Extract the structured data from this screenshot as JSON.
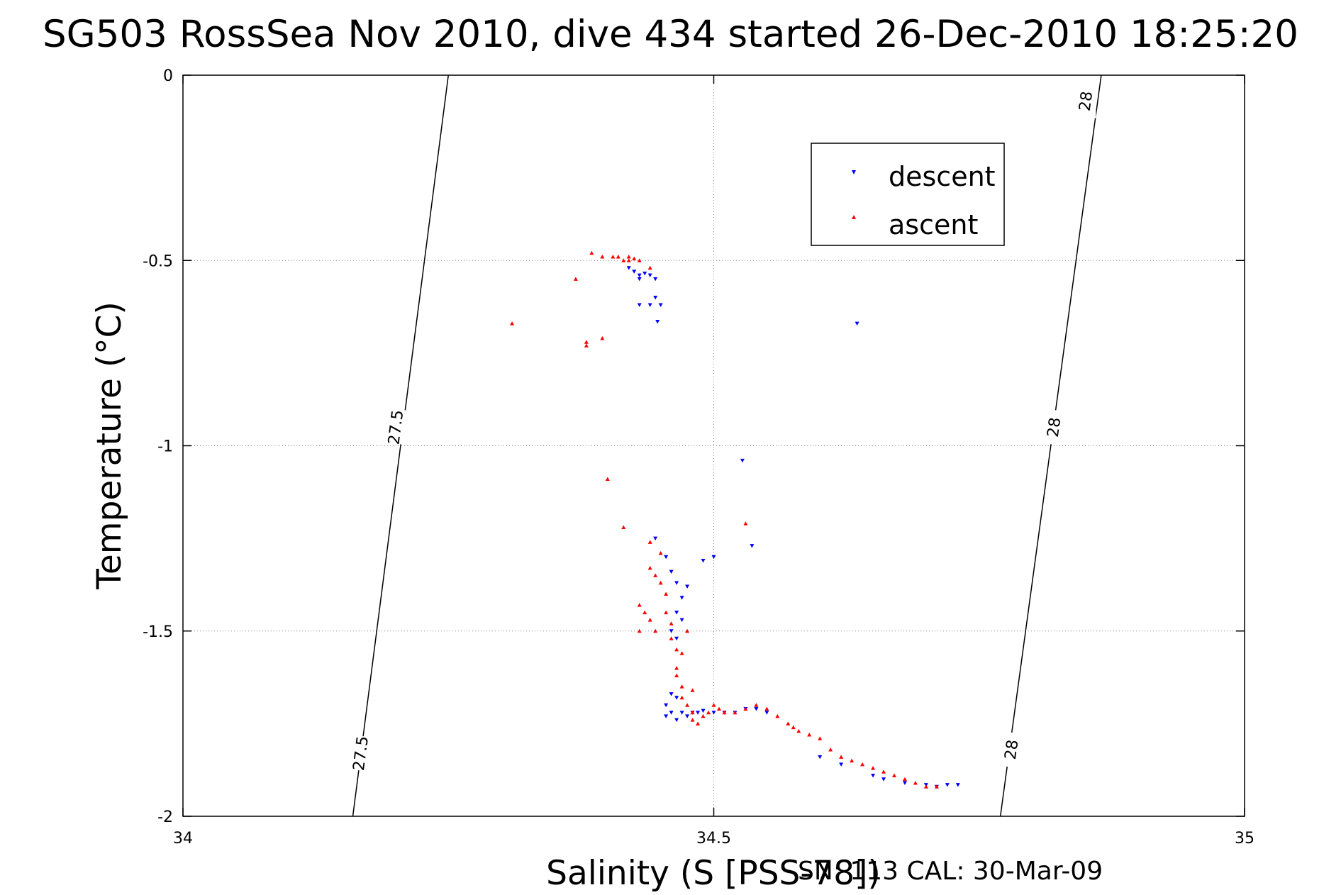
{
  "chart_data": {
    "type": "scatter",
    "title": "SG503 RossSea Nov 2010, dive 434 started 26-Dec-2010 18:25:20",
    "xlabel": "Salinity (S [PSS-78])",
    "ylabel": "Temperature (°C)",
    "xlim": [
      34,
      35
    ],
    "ylim": [
      -2,
      0
    ],
    "xticks": [
      "34",
      "34.5",
      "35"
    ],
    "yticks": [
      "0",
      "-0.5",
      "-1",
      "-1.5",
      "-2"
    ],
    "grid": true,
    "legend_position": "upper-right",
    "contours": [
      {
        "level": "27.5",
        "points": [
          [
            34.25,
            0
          ],
          [
            34.16,
            -2
          ]
        ],
        "labels": [
          [
            34.2,
            -0.95
          ],
          [
            34.167,
            -1.83
          ]
        ]
      },
      {
        "level": "28",
        "points": [
          [
            34.865,
            0
          ],
          [
            34.77,
            -2
          ]
        ],
        "labels": [
          [
            34.85,
            -0.07
          ],
          [
            34.82,
            -0.95
          ],
          [
            34.78,
            -1.82
          ]
        ]
      }
    ],
    "series": [
      {
        "name": "descent",
        "color": "#0000ff",
        "marker": "triangle-down",
        "points": [
          [
            34.42,
            -0.52
          ],
          [
            34.425,
            -0.53
          ],
          [
            34.43,
            -0.54
          ],
          [
            34.435,
            -0.535
          ],
          [
            34.44,
            -0.54
          ],
          [
            34.445,
            -0.55
          ],
          [
            34.43,
            -0.55
          ],
          [
            34.43,
            -0.62
          ],
          [
            34.445,
            -0.6
          ],
          [
            34.44,
            -0.62
          ],
          [
            34.45,
            -0.62
          ],
          [
            34.447,
            -0.665
          ],
          [
            34.635,
            -0.67
          ],
          [
            34.527,
            -1.04
          ],
          [
            34.536,
            -1.27
          ],
          [
            34.5,
            -1.3
          ],
          [
            34.49,
            -1.31
          ],
          [
            34.445,
            -1.25
          ],
          [
            34.455,
            -1.3
          ],
          [
            34.46,
            -1.34
          ],
          [
            34.465,
            -1.37
          ],
          [
            34.475,
            -1.38
          ],
          [
            34.47,
            -1.41
          ],
          [
            34.47,
            -1.47
          ],
          [
            34.465,
            -1.45
          ],
          [
            34.46,
            -1.5
          ],
          [
            34.465,
            -1.52
          ],
          [
            34.46,
            -1.67
          ],
          [
            34.465,
            -1.68
          ],
          [
            34.455,
            -1.7
          ],
          [
            34.46,
            -1.72
          ],
          [
            34.47,
            -1.72
          ],
          [
            34.475,
            -1.73
          ],
          [
            34.48,
            -1.72
          ],
          [
            34.485,
            -1.72
          ],
          [
            34.49,
            -1.715
          ],
          [
            34.5,
            -1.72
          ],
          [
            34.51,
            -1.72
          ],
          [
            34.52,
            -1.72
          ],
          [
            34.53,
            -1.71
          ],
          [
            34.54,
            -1.71
          ],
          [
            34.55,
            -1.72
          ],
          [
            34.455,
            -1.73
          ],
          [
            34.465,
            -1.74
          ],
          [
            34.6,
            -1.84
          ],
          [
            34.62,
            -1.86
          ],
          [
            34.65,
            -1.89
          ],
          [
            34.66,
            -1.9
          ],
          [
            34.68,
            -1.91
          ],
          [
            34.7,
            -1.915
          ],
          [
            34.71,
            -1.92
          ],
          [
            34.72,
            -1.915
          ],
          [
            34.73,
            -1.915
          ]
        ]
      },
      {
        "name": "ascent",
        "color": "#ff0000",
        "marker": "triangle-up",
        "points": [
          [
            34.385,
            -0.48
          ],
          [
            34.395,
            -0.49
          ],
          [
            34.41,
            -0.49
          ],
          [
            34.415,
            -0.5
          ],
          [
            34.42,
            -0.49
          ],
          [
            34.425,
            -0.495
          ],
          [
            34.43,
            -0.5
          ],
          [
            34.42,
            -0.5
          ],
          [
            34.405,
            -0.49
          ],
          [
            34.44,
            -0.52
          ],
          [
            34.37,
            -0.55
          ],
          [
            34.395,
            -0.71
          ],
          [
            34.38,
            -0.73
          ],
          [
            34.38,
            -0.72
          ],
          [
            34.31,
            -0.67
          ],
          [
            34.4,
            -1.09
          ],
          [
            34.53,
            -1.21
          ],
          [
            34.415,
            -1.22
          ],
          [
            34.44,
            -1.26
          ],
          [
            34.45,
            -1.29
          ],
          [
            34.44,
            -1.33
          ],
          [
            34.445,
            -1.35
          ],
          [
            34.45,
            -1.37
          ],
          [
            34.455,
            -1.4
          ],
          [
            34.43,
            -1.43
          ],
          [
            34.435,
            -1.45
          ],
          [
            34.44,
            -1.47
          ],
          [
            34.445,
            -1.5
          ],
          [
            34.43,
            -1.5
          ],
          [
            34.455,
            -1.45
          ],
          [
            34.46,
            -1.48
          ],
          [
            34.46,
            -1.52
          ],
          [
            34.465,
            -1.55
          ],
          [
            34.47,
            -1.56
          ],
          [
            34.475,
            -1.5
          ],
          [
            34.465,
            -1.6
          ],
          [
            34.465,
            -1.62
          ],
          [
            34.47,
            -1.65
          ],
          [
            34.47,
            -1.68
          ],
          [
            34.475,
            -1.7
          ],
          [
            34.48,
            -1.66
          ],
          [
            34.48,
            -1.72
          ],
          [
            34.48,
            -1.74
          ],
          [
            34.485,
            -1.75
          ],
          [
            34.49,
            -1.73
          ],
          [
            34.495,
            -1.72
          ],
          [
            34.5,
            -1.7
          ],
          [
            34.505,
            -1.71
          ],
          [
            34.51,
            -1.72
          ],
          [
            34.52,
            -1.72
          ],
          [
            34.53,
            -1.71
          ],
          [
            34.54,
            -1.7
          ],
          [
            34.55,
            -1.71
          ],
          [
            34.56,
            -1.73
          ],
          [
            34.57,
            -1.75
          ],
          [
            34.575,
            -1.76
          ],
          [
            34.58,
            -1.77
          ],
          [
            34.59,
            -1.78
          ],
          [
            34.6,
            -1.79
          ],
          [
            34.61,
            -1.82
          ],
          [
            34.62,
            -1.84
          ],
          [
            34.63,
            -1.85
          ],
          [
            34.64,
            -1.86
          ],
          [
            34.65,
            -1.87
          ],
          [
            34.66,
            -1.88
          ],
          [
            34.67,
            -1.89
          ],
          [
            34.68,
            -1.9
          ],
          [
            34.69,
            -1.91
          ],
          [
            34.7,
            -1.92
          ],
          [
            34.71,
            -1.92
          ]
        ]
      }
    ],
    "footer": "SN: 113  CAL: 30-Mar-09"
  }
}
